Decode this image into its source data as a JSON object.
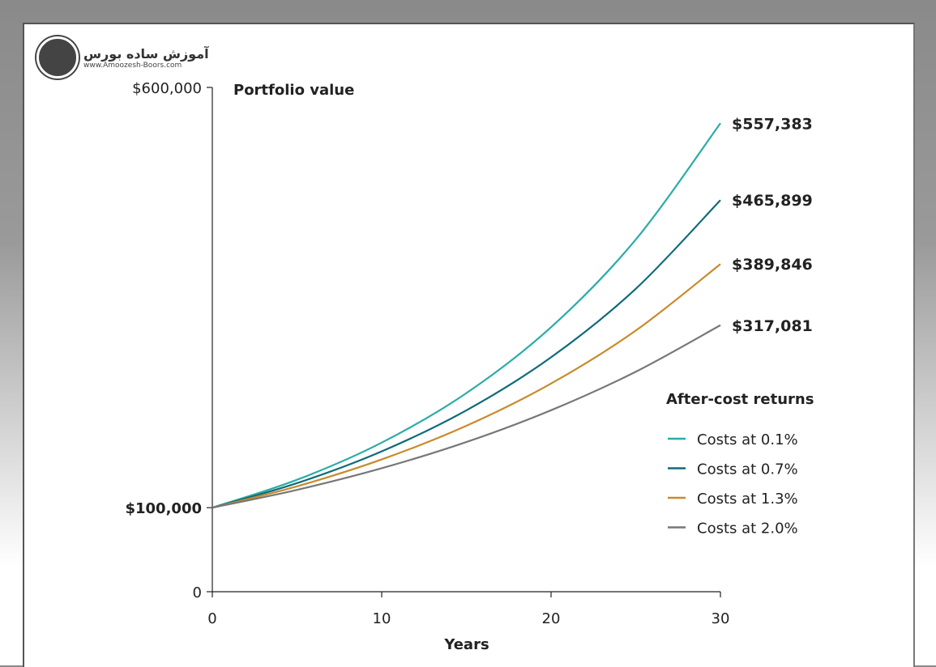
{
  "logo": {
    "name": "آموزش ساده بورس",
    "url": "www.Amoozesh-Boors.com"
  },
  "chart_data": {
    "type": "line",
    "title": "Portfolio value",
    "xlabel": "Years",
    "ylabel": "Portfolio value",
    "xlim": [
      0,
      30
    ],
    "ylim": [
      0,
      600000
    ],
    "x_ticks": [
      0,
      10,
      20,
      30
    ],
    "y_tick_labels": [
      {
        "value": 0,
        "label": "0"
      },
      {
        "value": 100000,
        "label": "$100,000"
      },
      {
        "value": 600000,
        "label": "$600,000"
      }
    ],
    "x": [
      0,
      5,
      10,
      15,
      20,
      25,
      30
    ],
    "legend_title": "After-cost returns",
    "legend_position": "right",
    "series": [
      {
        "name": "Costs at 0.1%",
        "color": "#2aaca6",
        "values": [
          100000,
          133200,
          177400,
          236300,
          314700,
          419000,
          557383
        ],
        "end_label": "$557,383"
      },
      {
        "name": "Costs at 0.7%",
        "color": "#0e6b78",
        "values": [
          100000,
          129200,
          167000,
          215800,
          278900,
          360400,
          465899
        ],
        "end_label": "$465,899"
      },
      {
        "name": "Costs at 1.3%",
        "color": "#c98a2a",
        "values": [
          100000,
          125400,
          157400,
          197400,
          247700,
          310700,
          389846
        ],
        "end_label": "$389,846"
      },
      {
        "name": "Costs at 2.0%",
        "color": "#777777",
        "values": [
          100000,
          121200,
          146900,
          178100,
          215900,
          261700,
          317081
        ],
        "end_label": "$317,081"
      }
    ]
  }
}
